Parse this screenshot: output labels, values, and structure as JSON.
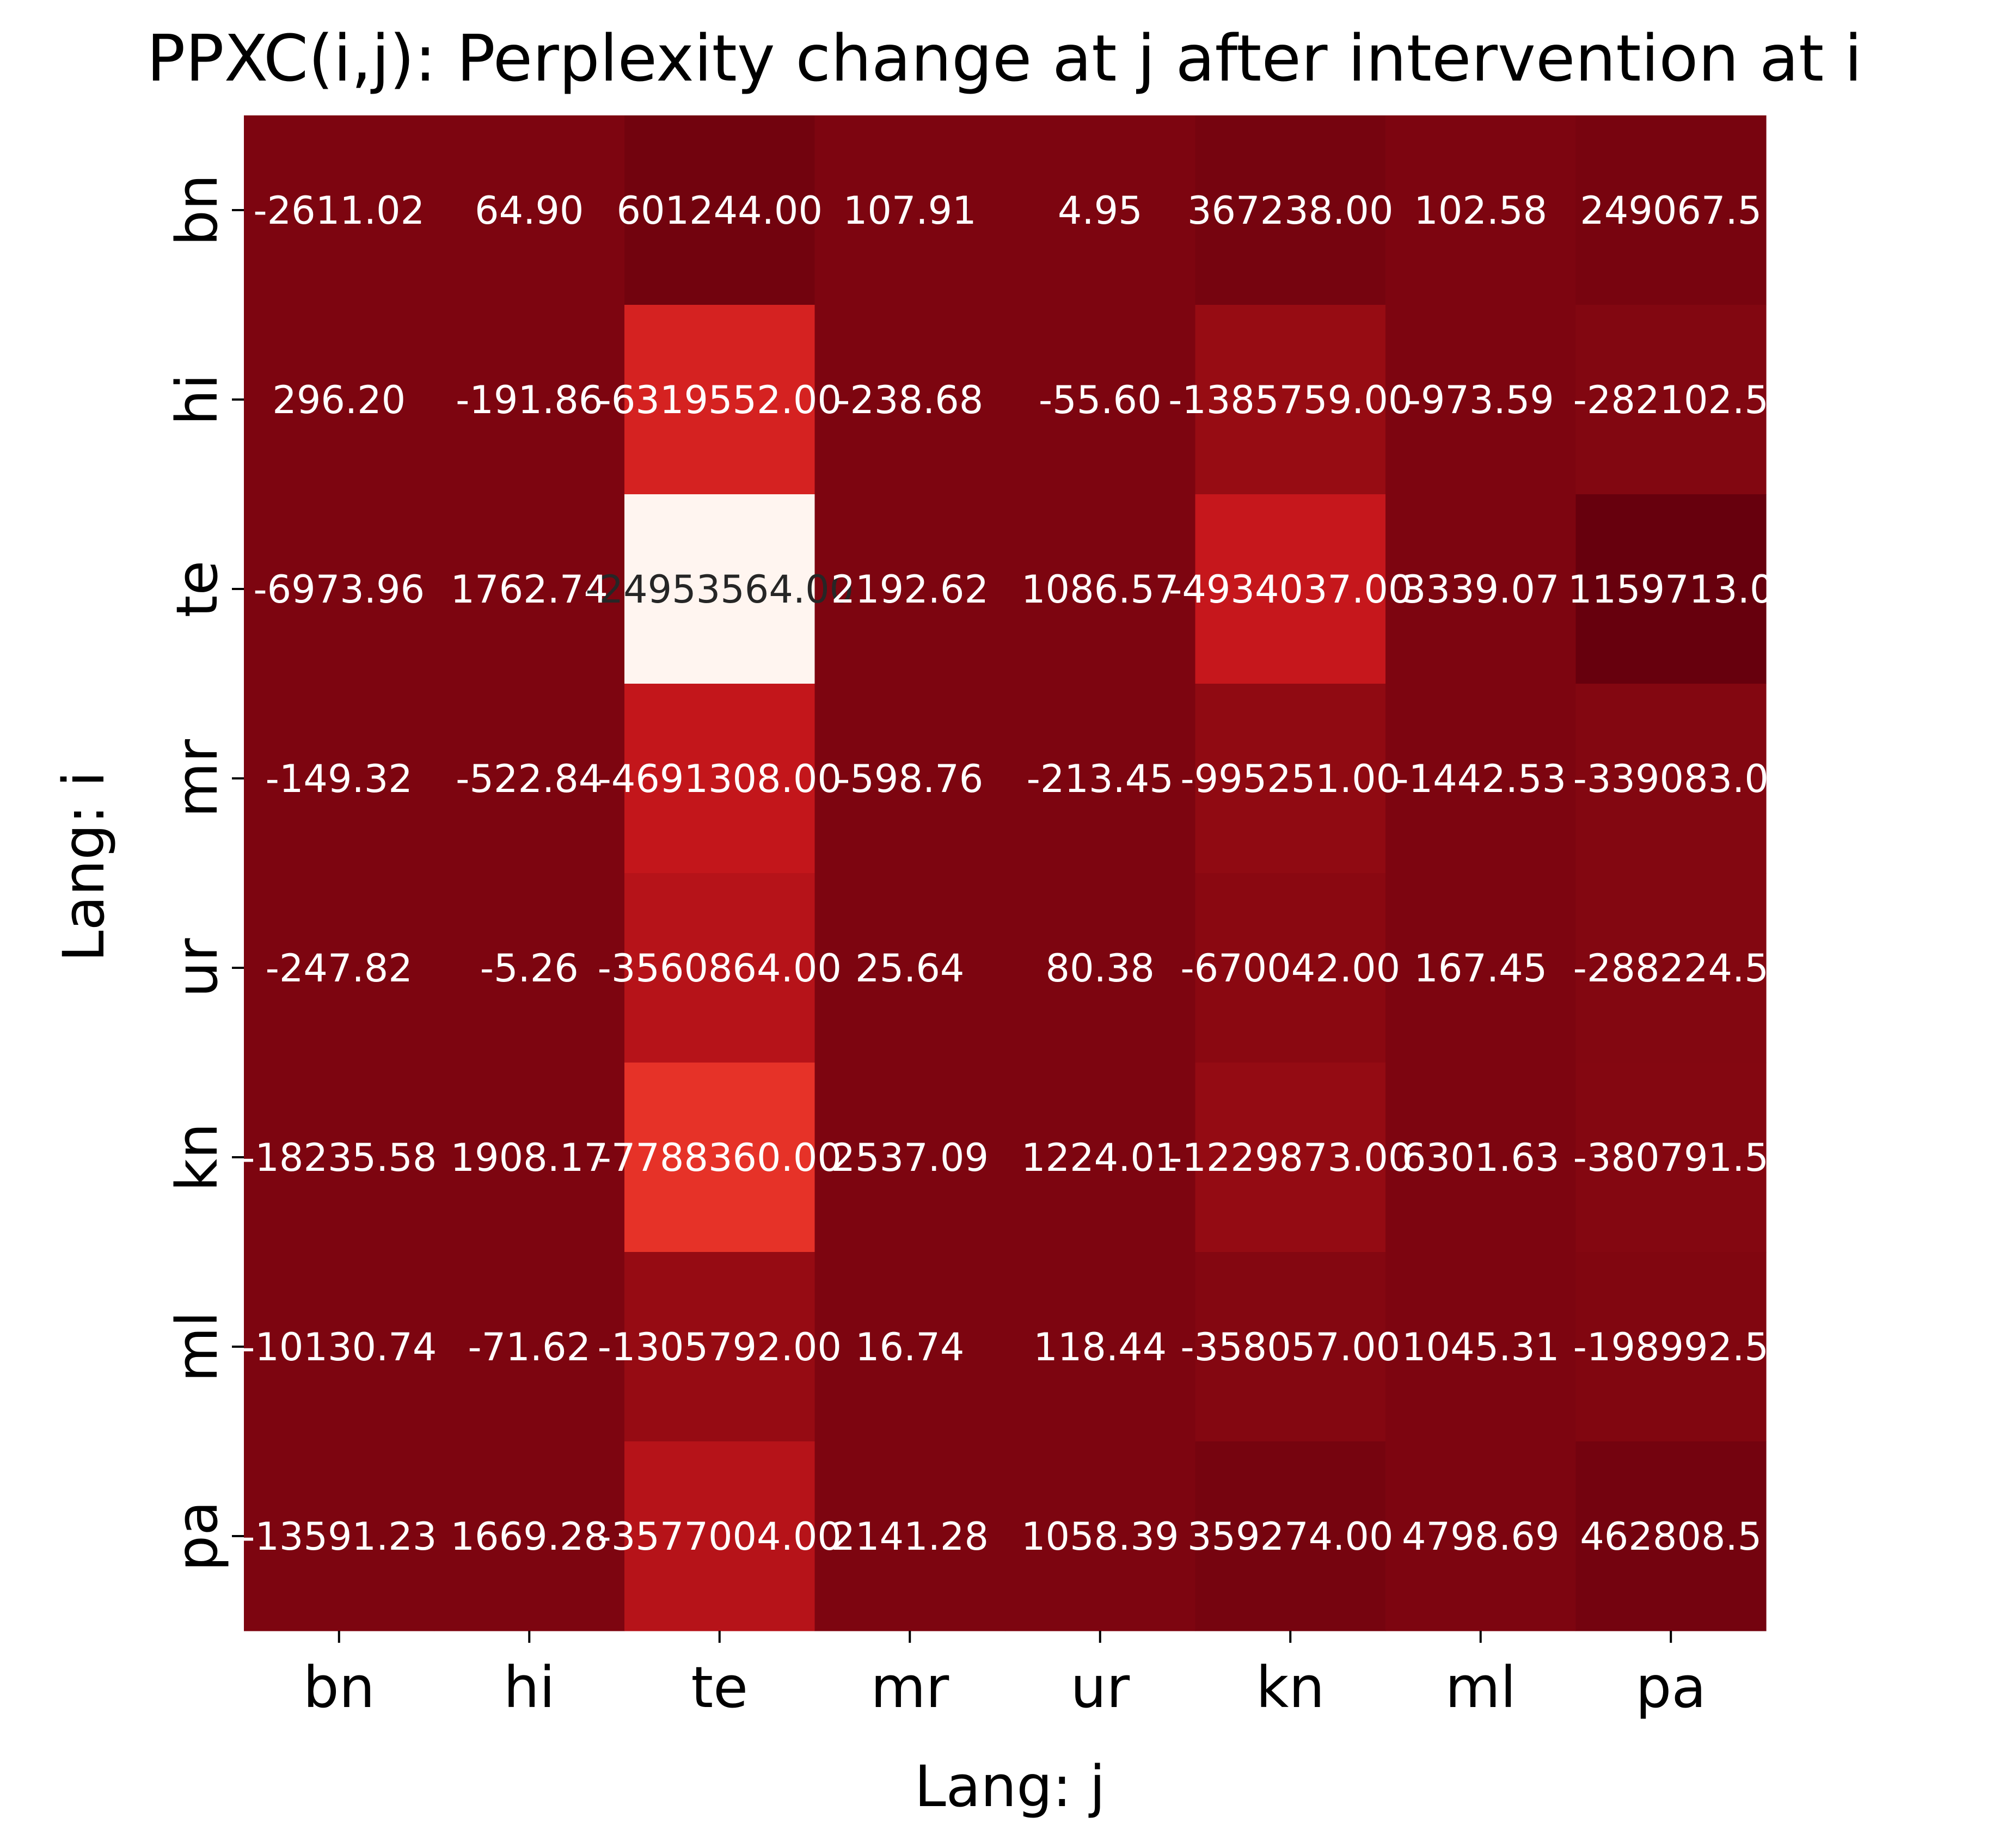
{
  "chart_data": {
    "type": "heatmap",
    "title": "PPXC(i,j): Perplexity change at j after intervention at i",
    "xlabel": "Lang: j",
    "ylabel": "Lang: i",
    "x_categories": [
      "bn",
      "hi",
      "te",
      "mr",
      "ur",
      "kn",
      "ml",
      "pa"
    ],
    "y_categories": [
      "bn",
      "hi",
      "te",
      "mr",
      "ur",
      "kn",
      "ml",
      "pa"
    ],
    "colormap": "Reds",
    "colorbar": false,
    "values": [
      [
        -2611.02,
        64.9,
        601244.0,
        107.91,
        4.95,
        367238.0,
        102.58,
        249067.5
      ],
      [
        296.2,
        -191.86,
        -6319552.0,
        -238.68,
        -55.6,
        -1385759.0,
        -973.59,
        -282102.5
      ],
      [
        -6973.96,
        1762.74,
        -24953564.0,
        2192.62,
        1086.57,
        -4934037.0,
        3339.07,
        1159713.0
      ],
      [
        -149.32,
        -522.84,
        -4691308.0,
        -598.76,
        -213.45,
        -995251.0,
        -1442.53,
        -339083.0
      ],
      [
        -247.82,
        -5.26,
        -3560864.0,
        25.64,
        80.38,
        -670042.0,
        167.45,
        -288224.5
      ],
      [
        -18235.58,
        1908.17,
        -7788360.0,
        2537.09,
        1224.01,
        -1229873.0,
        6301.63,
        -380791.5
      ],
      [
        -10130.74,
        -71.62,
        -1305792.0,
        16.74,
        118.44,
        -358057.0,
        1045.31,
        -198992.5
      ],
      [
        -13591.23,
        1669.28,
        -3577004.0,
        2141.28,
        1058.39,
        359274.0,
        4798.69,
        462808.5
      ]
    ],
    "cell_labels": [
      [
        "-2611.02",
        "64.90",
        "601244.00",
        "107.91",
        "4.95",
        "367238.00",
        "102.58",
        "249067.5"
      ],
      [
        "296.20",
        "-191.86",
        "-6319552.00",
        "-238.68",
        "-55.60",
        "-1385759.00",
        "-973.59",
        "-282102.5"
      ],
      [
        "-6973.96",
        "1762.74",
        "-24953564.00",
        "2192.62",
        "1086.57",
        "-4934037.00",
        "3339.07",
        "1159713.0"
      ],
      [
        "-149.32",
        "-522.84",
        "-4691308.00",
        "-598.76",
        "-213.45",
        "-995251.00",
        "-1442.53",
        "-339083.0"
      ],
      [
        "-247.82",
        "-5.26",
        "-3560864.00",
        "25.64",
        "80.38",
        "-670042.00",
        "167.45",
        "-288224.5"
      ],
      [
        "-18235.58",
        "1908.17",
        "-7788360.00",
        "2537.09",
        "1224.01",
        "-1229873.00",
        "6301.63",
        "-380791.5"
      ],
      [
        "-10130.74",
        "-71.62",
        "-1305792.00",
        "16.74",
        "118.44",
        "-358057.00",
        "1045.31",
        "-198992.5"
      ],
      [
        "-13591.23",
        "1669.28",
        "-3577004.00",
        "2141.28",
        "1058.39",
        "359274.00",
        "4798.69",
        "462808.5"
      ]
    ],
    "vmin": -24953564.0,
    "vmax": 1159713.0
  }
}
